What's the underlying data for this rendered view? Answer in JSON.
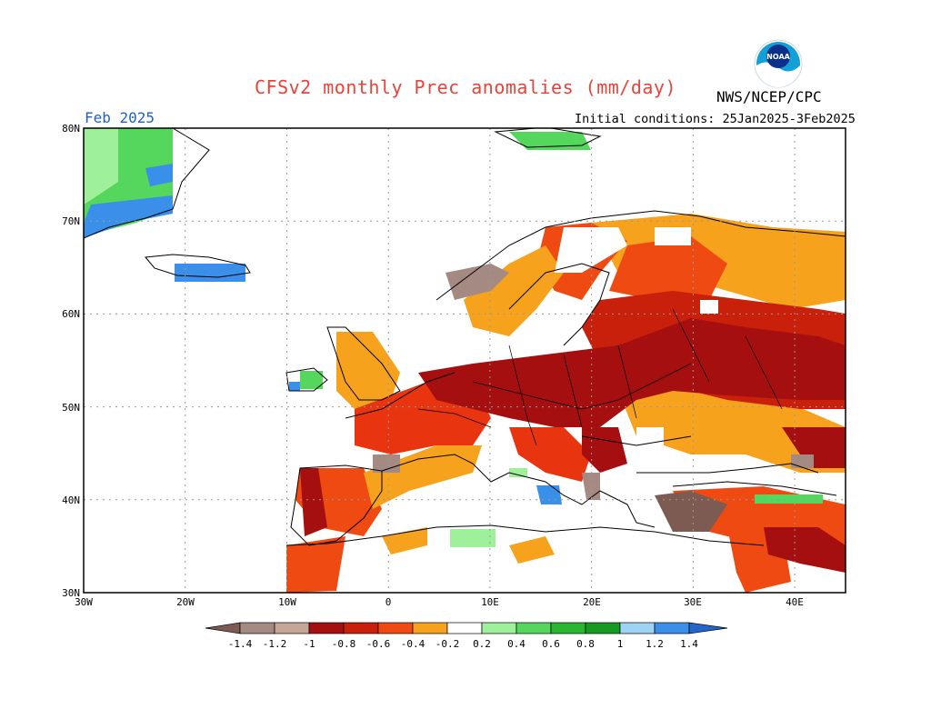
{
  "title": "CFSv2 monthly Prec anomalies (mm/day)",
  "organization": "NWS/NCEP/CPC",
  "logo_text": "NOAA",
  "valid_month": "Feb 2025",
  "initial_conditions": "Initial conditions: 25Jan2025-3Feb2025",
  "lat_labels": [
    "80N",
    "70N",
    "60N",
    "50N",
    "40N",
    "30N"
  ],
  "lon_labels": [
    "30W",
    "20W",
    "10W",
    "0",
    "10E",
    "20E",
    "30E",
    "40E"
  ],
  "colorbar": {
    "labels": [
      "-1.4",
      "-1.2",
      "-1",
      "-0.8",
      "-0.6",
      "-0.4",
      "-0.2",
      "0.2",
      "0.4",
      "0.6",
      "0.8",
      "1",
      "1.2",
      "1.4"
    ],
    "colors": [
      "#7d5a52",
      "#a48a82",
      "#c7a69a",
      "#a50f0f",
      "#c8200a",
      "#ee4a12",
      "#f6a21d",
      "#ffffff",
      "#9ef09a",
      "#55d65c",
      "#29b631",
      "#179a20",
      "#9fd3f4",
      "#3a8fe8",
      "#2266cc"
    ]
  },
  "colors": {
    "title": "#e8433a",
    "month": "#1f5fd0",
    "dry_strong": "#a50f0f",
    "dry_moderate": "#e8340f",
    "dry_weak": "#f6a21d",
    "wet_weak": "#9ef09a",
    "wet_moderate": "#55d65c",
    "wet_blue": "#3a8fe8"
  },
  "chart_data": {
    "type": "heatmap",
    "title": "CFSv2 monthly Prec anomalies (mm/day)",
    "region_lon": [
      -30,
      45
    ],
    "region_lat": [
      30,
      80
    ],
    "xticks": [
      "30W",
      "20W",
      "10W",
      "0",
      "10E",
      "20E",
      "30E",
      "40E"
    ],
    "yticks": [
      "80N",
      "70N",
      "60N",
      "50N",
      "40N",
      "30N"
    ],
    "grid": true,
    "units": "mm/day",
    "levels": [
      -1.4,
      -1.2,
      -1,
      -0.8,
      -0.6,
      -0.4,
      -0.2,
      0.2,
      0.4,
      0.6,
      0.8,
      1,
      1.2,
      1.4
    ],
    "anomaly_regions": [
      {
        "lon": [
          -5,
          30
        ],
        "lat": [
          44,
          56
        ],
        "value": -0.9
      },
      {
        "lon": [
          20,
          45
        ],
        "lat": [
          52,
          62
        ],
        "value": -0.9
      },
      {
        "lon": [
          5,
          45
        ],
        "lat": [
          60,
          70
        ],
        "value": -0.5
      },
      {
        "lon": [
          -10,
          -5
        ],
        "lat": [
          36,
          44
        ],
        "value": -0.7
      },
      {
        "lon": [
          -5,
          5
        ],
        "lat": [
          42,
          48
        ],
        "value": -0.6
      },
      {
        "lon": [
          22,
          35
        ],
        "lat": [
          36,
          40
        ],
        "value": -1.3
      },
      {
        "lon": [
          35,
          45
        ],
        "lat": [
          30,
          40
        ],
        "value": -0.7
      },
      {
        "lon": [
          -30,
          -21
        ],
        "lat": [
          70,
          80
        ],
        "value": 0.6
      },
      {
        "lon": [
          -20,
          -14
        ],
        "lat": [
          63,
          65
        ],
        "value": 1.3
      },
      {
        "lon": [
          15,
          18
        ],
        "lat": [
          40,
          42
        ],
        "value": 1.3
      },
      {
        "lon": [
          37,
          43
        ],
        "lat": [
          40,
          41
        ],
        "value": 0.5
      },
      {
        "lon": [
          5,
          10
        ],
        "lat": [
          35,
          37
        ],
        "value": 0.4
      }
    ]
  }
}
